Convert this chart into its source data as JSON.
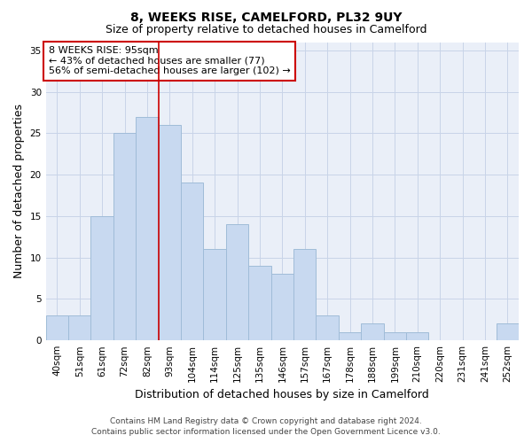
{
  "title1": "8, WEEKS RISE, CAMELFORD, PL32 9UY",
  "title2": "Size of property relative to detached houses in Camelford",
  "xlabel": "Distribution of detached houses by size in Camelford",
  "ylabel": "Number of detached properties",
  "categories": [
    "40sqm",
    "51sqm",
    "61sqm",
    "72sqm",
    "82sqm",
    "93sqm",
    "104sqm",
    "114sqm",
    "125sqm",
    "135sqm",
    "146sqm",
    "157sqm",
    "167sqm",
    "178sqm",
    "188sqm",
    "199sqm",
    "210sqm",
    "220sqm",
    "231sqm",
    "241sqm",
    "252sqm"
  ],
  "values": [
    3,
    3,
    15,
    25,
    27,
    26,
    19,
    11,
    14,
    9,
    8,
    11,
    3,
    1,
    2,
    1,
    1,
    0,
    0,
    0,
    2
  ],
  "bar_color": "#c8d9f0",
  "bar_edge_color": "#a0bcd8",
  "grid_color": "#c8d4e8",
  "bg_color": "#eaeff8",
  "vline_x_index": 5,
  "vline_color": "#cc0000",
  "annotation_line1": "8 WEEKS RISE: 95sqm",
  "annotation_line2": "← 43% of detached houses are smaller (77)",
  "annotation_line3": "56% of semi-detached houses are larger (102) →",
  "annotation_box_color": "#ffffff",
  "annotation_box_edge_color": "#cc0000",
  "ylim": [
    0,
    36
  ],
  "yticks": [
    0,
    5,
    10,
    15,
    20,
    25,
    30,
    35
  ],
  "footer_line1": "Contains HM Land Registry data © Crown copyright and database right 2024.",
  "footer_line2": "Contains public sector information licensed under the Open Government Licence v3.0.",
  "title_fontsize": 10,
  "subtitle_fontsize": 9,
  "axis_label_fontsize": 9,
  "tick_fontsize": 7.5,
  "annotation_fontsize": 8,
  "footer_fontsize": 6.5
}
